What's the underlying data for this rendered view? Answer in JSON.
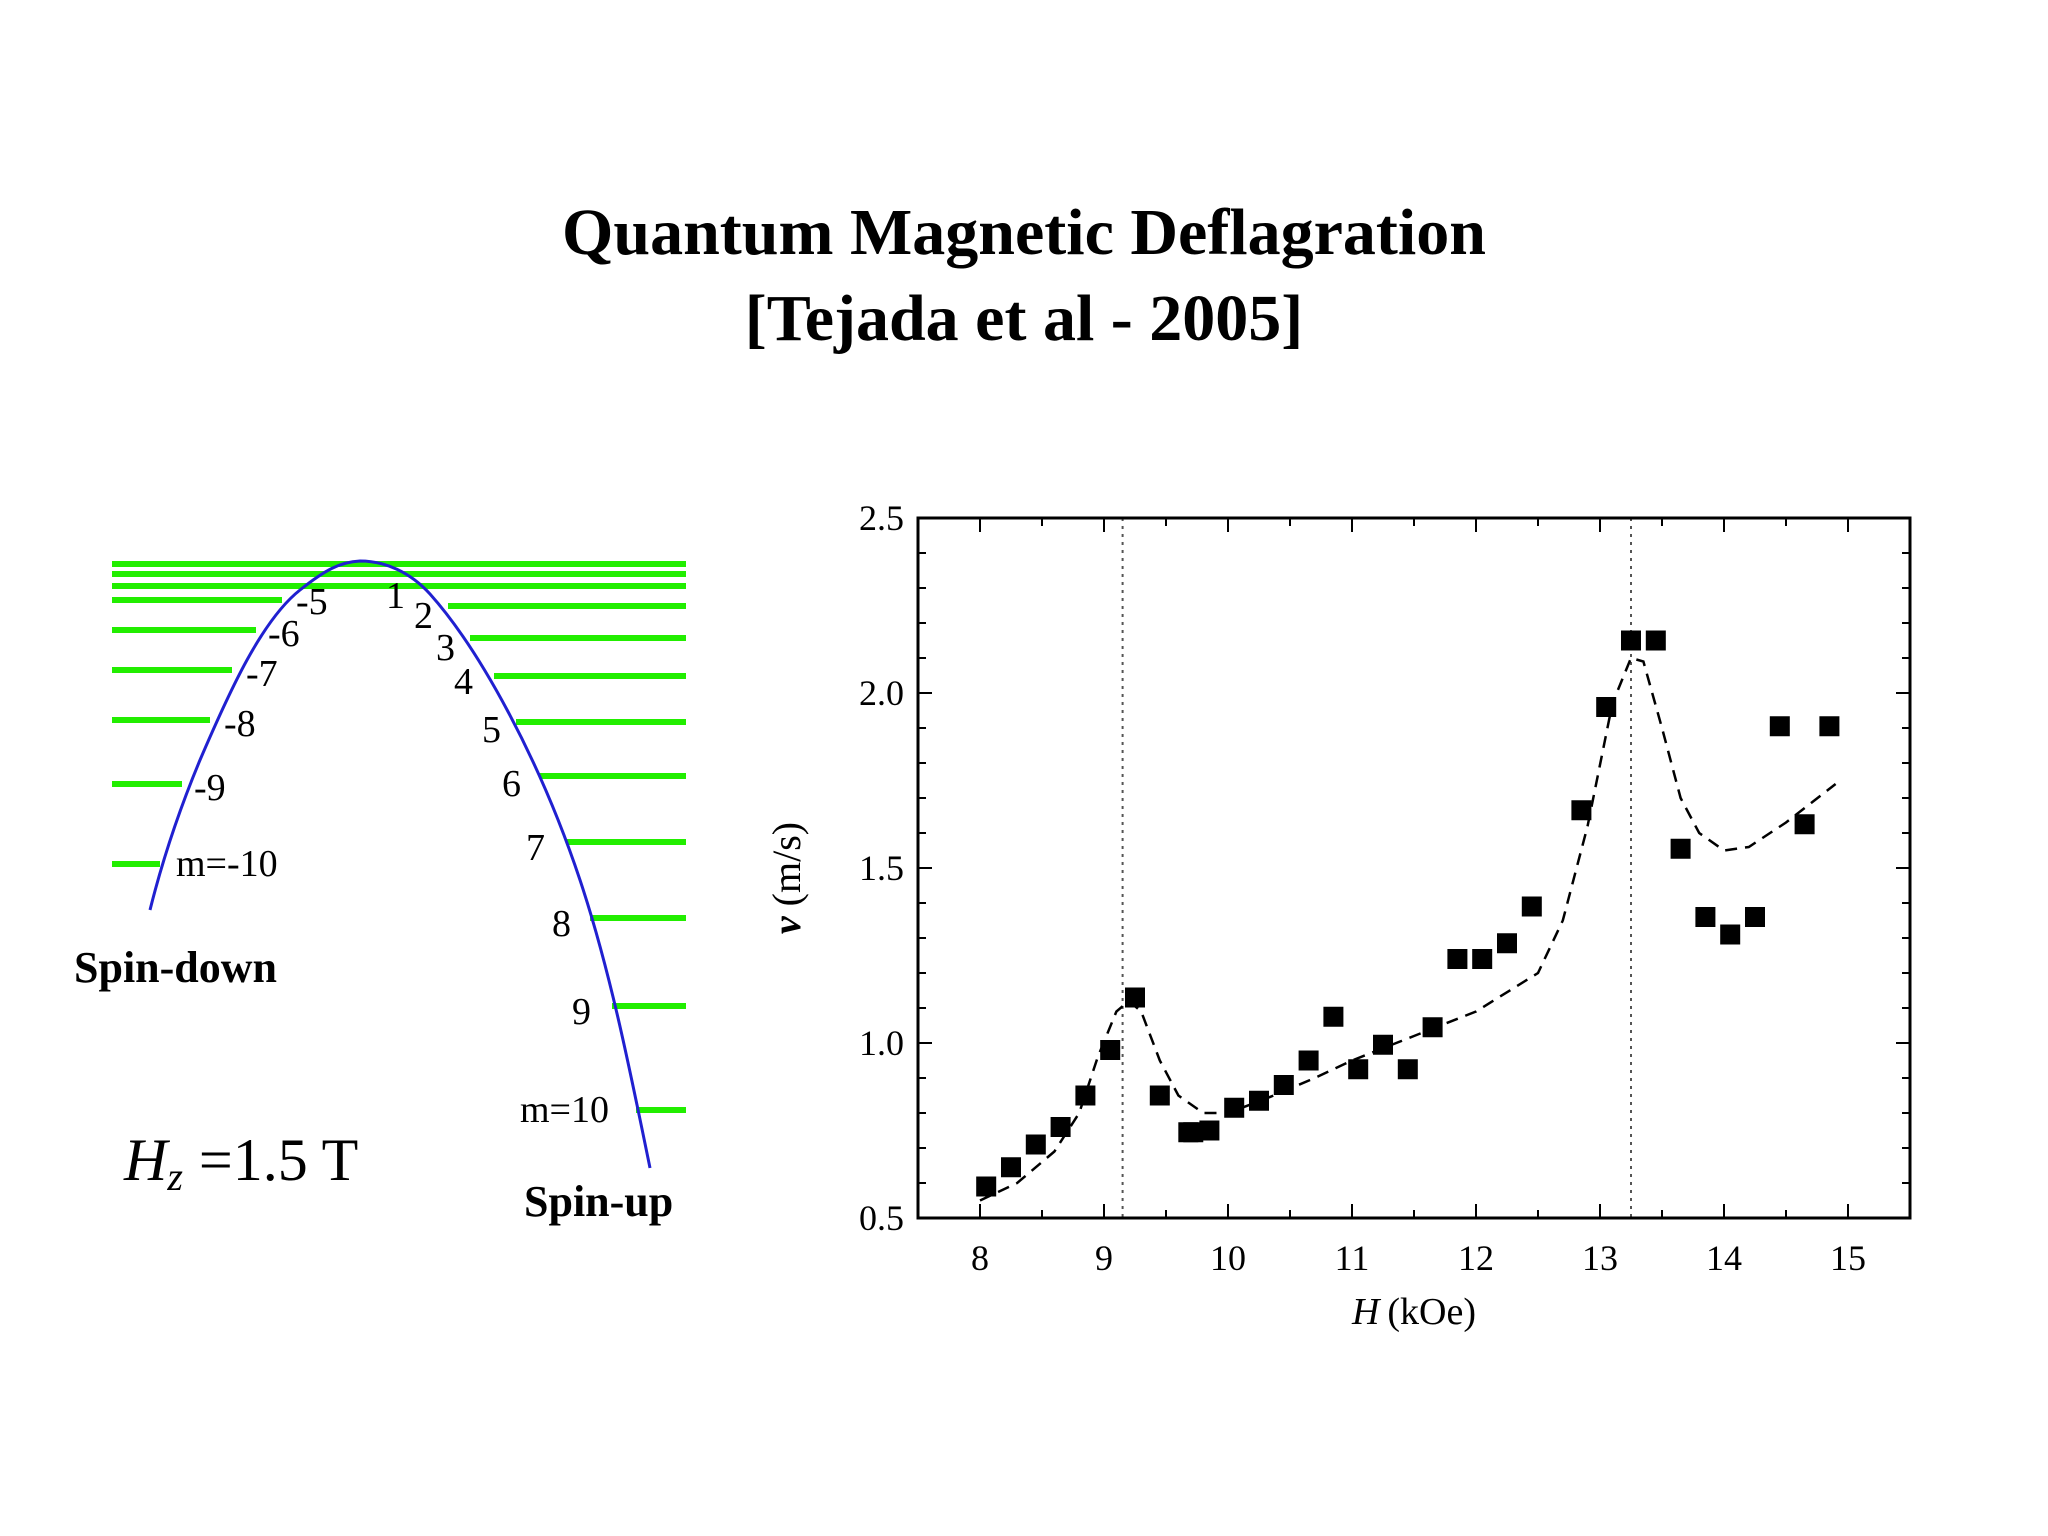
{
  "slide": {
    "title_line1": "Quantum Magnetic Deflagration",
    "title_line2": "[Tejada et al - 2005]"
  },
  "colors": {
    "level_green": "#22ee00",
    "curve_blue": "#2020d0",
    "marker": "#000000"
  },
  "energy_diagram": {
    "spin_down_label": "Spin-down",
    "spin_up_label": "Spin-up",
    "field_symbol": "H",
    "field_subscript": "z",
    "field_value": "=1.5 T",
    "left_labels": [
      "-5",
      "-6",
      "-7",
      "-8",
      "-9",
      "m=-10"
    ],
    "right_labels": [
      "1",
      "2",
      "3",
      "4",
      "5",
      "6",
      "7",
      "8",
      "9",
      "m=10"
    ]
  },
  "chart_data": {
    "type": "scatter",
    "xlabel_italic": "H",
    "xlabel_unit": "(kOe)",
    "ylabel_italic": "v",
    "ylabel_unit": "(m/s)",
    "xlim": [
      7.5,
      15.5
    ],
    "ylim": [
      0.5,
      2.5
    ],
    "x_ticks": [
      "8",
      "9",
      "10",
      "11",
      "12",
      "13",
      "14",
      "15"
    ],
    "y_ticks": [
      "0.5",
      "1.0",
      "1.5",
      "2.0",
      "2.5"
    ],
    "vlines": [
      9.15,
      13.25
    ],
    "points": [
      [
        8.05,
        0.59
      ],
      [
        8.25,
        0.645
      ],
      [
        8.45,
        0.71
      ],
      [
        8.65,
        0.76
      ],
      [
        8.85,
        0.85
      ],
      [
        9.05,
        0.98
      ],
      [
        9.25,
        1.13
      ],
      [
        9.45,
        0.85
      ],
      [
        9.68,
        0.745
      ],
      [
        9.72,
        0.745
      ],
      [
        9.85,
        0.75
      ],
      [
        10.05,
        0.815
      ],
      [
        10.25,
        0.835
      ],
      [
        10.45,
        0.88
      ],
      [
        10.65,
        0.95
      ],
      [
        10.85,
        1.075
      ],
      [
        11.05,
        0.925
      ],
      [
        11.25,
        0.995
      ],
      [
        11.45,
        0.925
      ],
      [
        11.65,
        1.045
      ],
      [
        11.85,
        1.24
      ],
      [
        12.05,
        1.24
      ],
      [
        12.25,
        1.285
      ],
      [
        12.45,
        1.39
      ],
      [
        12.85,
        1.665
      ],
      [
        13.05,
        1.96
      ],
      [
        13.25,
        2.15
      ],
      [
        13.45,
        2.15
      ],
      [
        13.65,
        1.555
      ],
      [
        13.85,
        1.36
      ],
      [
        14.05,
        1.31
      ],
      [
        14.25,
        1.36
      ],
      [
        14.45,
        1.905
      ],
      [
        14.65,
        1.625
      ],
      [
        14.85,
        1.905
      ]
    ],
    "fit_curve": [
      [
        8.0,
        0.55
      ],
      [
        8.3,
        0.6
      ],
      [
        8.6,
        0.69
      ],
      [
        8.8,
        0.8
      ],
      [
        8.95,
        0.96
      ],
      [
        9.1,
        1.09
      ],
      [
        9.2,
        1.12
      ],
      [
        9.3,
        1.09
      ],
      [
        9.45,
        0.95
      ],
      [
        9.6,
        0.85
      ],
      [
        9.8,
        0.8
      ],
      [
        10.0,
        0.8
      ],
      [
        10.3,
        0.84
      ],
      [
        10.7,
        0.9
      ],
      [
        11.0,
        0.95
      ],
      [
        11.5,
        1.02
      ],
      [
        12.0,
        1.09
      ],
      [
        12.5,
        1.2
      ],
      [
        12.7,
        1.35
      ],
      [
        12.9,
        1.62
      ],
      [
        13.1,
        1.97
      ],
      [
        13.25,
        2.1
      ],
      [
        13.35,
        2.09
      ],
      [
        13.5,
        1.9
      ],
      [
        13.65,
        1.7
      ],
      [
        13.8,
        1.6
      ],
      [
        14.0,
        1.55
      ],
      [
        14.2,
        1.56
      ],
      [
        14.5,
        1.63
      ],
      [
        14.9,
        1.74
      ]
    ]
  }
}
